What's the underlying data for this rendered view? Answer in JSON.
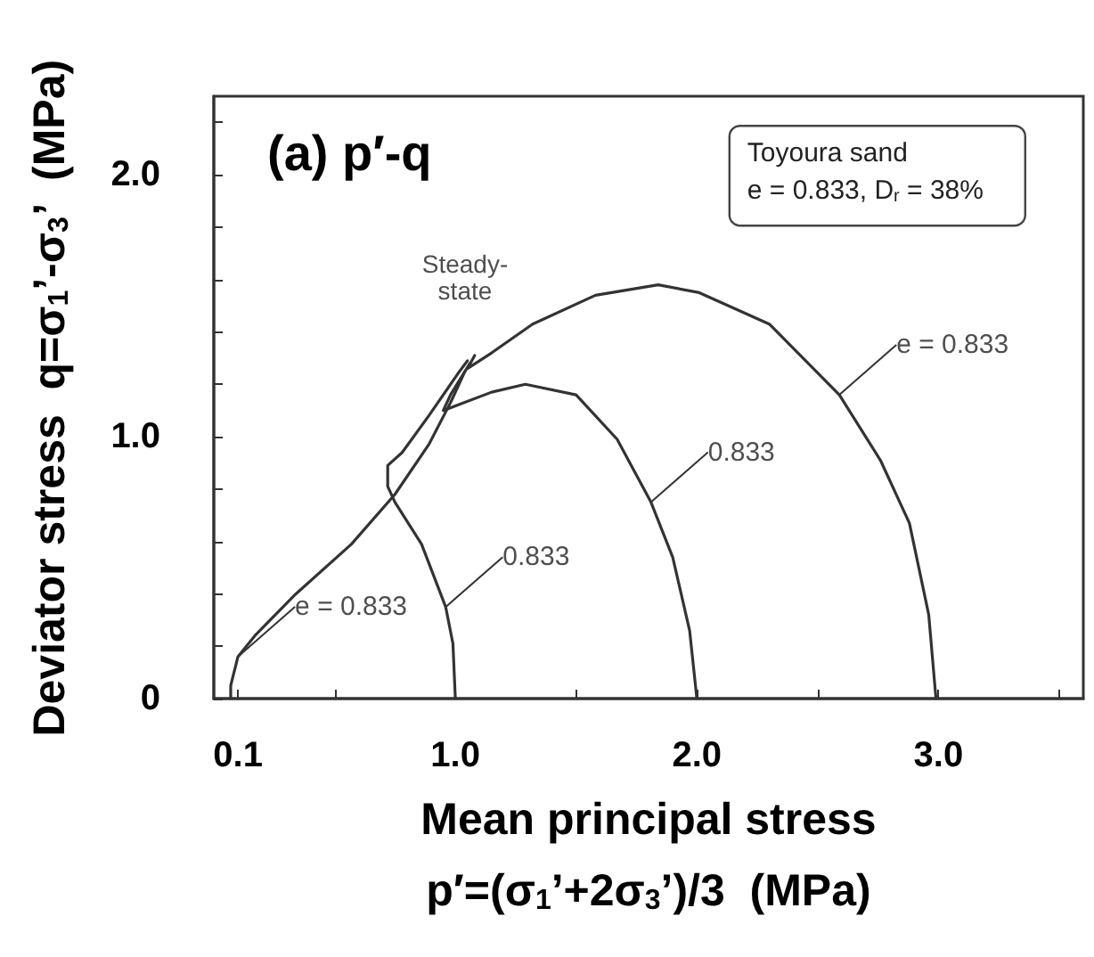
{
  "chart_data": {
    "type": "line",
    "title": "(a) p′-q",
    "xlabel": "Mean principal stress\np′=(σ$_{1}$’+2σ$_{3}$’)/3  (MPa)",
    "ylabel": "Deviator stress  q=σ$_{1}$’-σ$_{3}$’  (MPa)",
    "xlim": [
      0,
      3.6
    ],
    "ylim": [
      0,
      2.3
    ],
    "xticks": [
      {
        "value": 0.1,
        "label": "0.1"
      },
      {
        "value": 0.5,
        "label": null
      },
      {
        "value": 1,
        "label": "1.0"
      },
      {
        "value": 1.5,
        "label": null
      },
      {
        "value": 2,
        "label": "2.0"
      },
      {
        "value": 2.5,
        "label": null
      },
      {
        "value": 3,
        "label": "3.0"
      },
      {
        "value": 3.5,
        "label": null
      }
    ],
    "yticks": [
      0,
      {
        "value": 0.2,
        "label": null
      },
      {
        "value": 0.4,
        "label": null
      },
      {
        "value": 0.6,
        "label": null
      },
      {
        "value": 0.8,
        "label": null
      },
      {
        "value": 1,
        "label": "1.0"
      },
      {
        "value": 1.2,
        "label": null
      },
      {
        "value": 1.4,
        "label": null
      },
      {
        "value": 1.6,
        "label": null
      },
      {
        "value": 1.8,
        "label": null
      },
      {
        "value": 2,
        "label": "2.0"
      },
      {
        "value": 2.2,
        "label": null
      }
    ],
    "grid": false,
    "marker": "none",
    "line_style": "solid",
    "series": [
      {
        "color": "#333333",
        "x": [
          0.07,
          0.07,
          0.1,
          0.17,
          0.34,
          0.57,
          0.75,
          0.89,
          0.98,
          1.04
        ],
        "values": [
          0,
          0.05,
          0.16,
          0.24,
          0.4,
          0.59,
          0.78,
          0.97,
          1.13,
          1.25
        ]
      },
      {
        "color": "#333333",
        "x": [
          1.0,
          0.99,
          0.96,
          0.86,
          0.75,
          0.72,
          0.72,
          0.78,
          0.89,
          1.01,
          1.05
        ],
        "values": [
          0,
          0.21,
          0.35,
          0.59,
          0.75,
          0.81,
          0.89,
          0.94,
          1.08,
          1.24,
          1.29
        ]
      },
      {
        "color": "#333333",
        "x": [
          2.0,
          1.97,
          1.9,
          1.81,
          1.67,
          1.5,
          1.29,
          1.15,
          0.95,
          0.98,
          1.06
        ],
        "values": [
          0,
          0.26,
          0.54,
          0.75,
          0.99,
          1.16,
          1.2,
          1.17,
          1.1,
          1.16,
          1.28
        ]
      },
      {
        "color": "#333333",
        "x": [
          2.99,
          2.96,
          2.88,
          2.76,
          2.59,
          2.3,
          2.01,
          1.84,
          1.58,
          1.32,
          1.15,
          1.05,
          1.08
        ],
        "values": [
          0,
          0.32,
          0.67,
          0.91,
          1.16,
          1.43,
          1.55,
          1.58,
          1.54,
          1.43,
          1.32,
          1.26,
          1.31
        ]
      }
    ],
    "annotations": [
      "Steady-\nstate",
      {
        "text": "e = 0.833",
        "x": 0.1,
        "y": 0.16
      },
      {
        "text": "0.833",
        "x": 0.96,
        "y": 0.35
      },
      {
        "text": "0.833",
        "x": 1.81,
        "y": 0.75
      },
      {
        "text": "e = 0.833",
        "x": 2.59,
        "y": 1.16
      },
      "Toyoura sand",
      "e = 0.833, D$_{r}$ = 38%"
    ]
  }
}
